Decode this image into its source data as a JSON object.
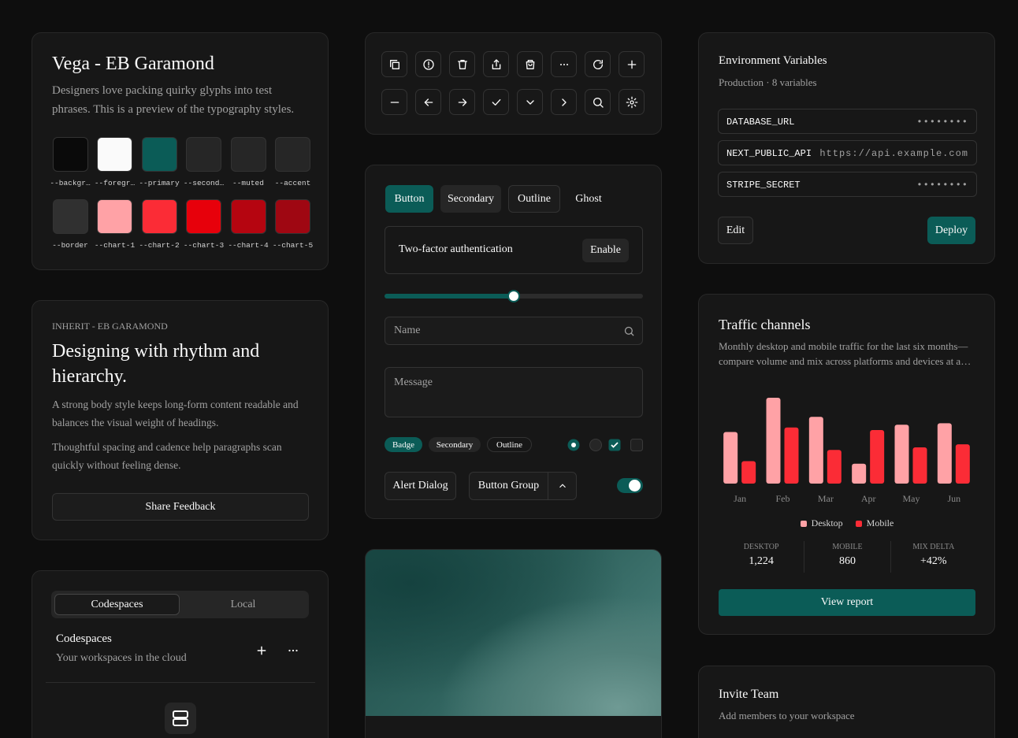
{
  "chart_data": {
    "type": "bar",
    "title": "Traffic channels",
    "subtitle": "Monthly desktop and mobile traffic for the last six months—compare volume and mix across platforms and devices at a…",
    "categories": [
      "Jan",
      "Feb",
      "Mar",
      "Apr",
      "May",
      "Jun"
    ],
    "series": [
      {
        "name": "Desktop",
        "color": "#ffa2a6",
        "values": [
          184,
          306,
          238,
          71,
          210,
          215
        ]
      },
      {
        "name": "Mobile",
        "color": "#fb2c36",
        "values": [
          80,
          200,
          120,
          191,
          129,
          140
        ]
      }
    ],
    "ylim": [
      0,
      320
    ],
    "legend": "bottom"
  },
  "traffic_summary": {
    "stats": [
      {
        "label": "DESKTOP",
        "value": "1,224"
      },
      {
        "label": "MOBILE",
        "value": "860"
      },
      {
        "label": "MIX DELTA",
        "value": "+42%"
      }
    ],
    "button": "View report"
  },
  "typography": {
    "title": "Vega - EB Garamond",
    "description": "Designers love packing quirky glyphs into test phrases. This is a preview of the typography styles.",
    "swatches": [
      {
        "label": "--backgr…",
        "color": "#0a0a0a"
      },
      {
        "label": "--foregr…",
        "color": "#fafafa"
      },
      {
        "label": "--primary",
        "color": "#0b5c57"
      },
      {
        "label": "--second…",
        "color": "#262626"
      },
      {
        "label": "--muted",
        "color": "#262626"
      },
      {
        "label": "--accent",
        "color": "#262626"
      },
      {
        "label": "--border",
        "color": "#303030"
      },
      {
        "label": "--chart-1",
        "color": "#ffa2a6"
      },
      {
        "label": "--chart-2",
        "color": "#fb2c36"
      },
      {
        "label": "--chart-3",
        "color": "#e7000b"
      },
      {
        "label": "--chart-4",
        "color": "#b50510"
      },
      {
        "label": "--chart-5",
        "color": "#9f0712"
      }
    ]
  },
  "article": {
    "eyebrow": "INHERIT - EB GARAMOND",
    "heading": "Designing with rhythm and hierarchy.",
    "paragraphs": [
      "A strong body style keeps long-form content readable and balances the visual weight of headings.",
      "Thoughtful spacing and cadence help paragraphs scan quickly without feeling dense."
    ],
    "button": "Share Feedback"
  },
  "workspace": {
    "tabs": [
      "Codespaces",
      "Local"
    ],
    "title": "Codespaces",
    "description": "Your workspaces in the cloud"
  },
  "controls": {
    "buttons": [
      "Button",
      "Secondary",
      "Outline",
      "Ghost"
    ],
    "setting": {
      "label": "Two-factor authentication",
      "action": "Enable"
    },
    "name_placeholder": "Name",
    "message_placeholder": "Message",
    "badges": [
      "Badge",
      "Secondary",
      "Outline"
    ],
    "alert_dialog": "Alert Dialog",
    "button_group": "Button Group"
  },
  "environment": {
    "title": "Environment Variables",
    "subtitle": "Production · 8 variables",
    "variables": [
      {
        "key": "DATABASE_URL",
        "value": "••••••••"
      },
      {
        "key": "NEXT_PUBLIC_API",
        "value": "https://api.example.com"
      },
      {
        "key": "STRIPE_SECRET",
        "value": "••••••••"
      }
    ],
    "edit": "Edit",
    "deploy": "Deploy"
  },
  "invite": {
    "title": "Invite Team",
    "subtitle": "Add members to your workspace"
  }
}
